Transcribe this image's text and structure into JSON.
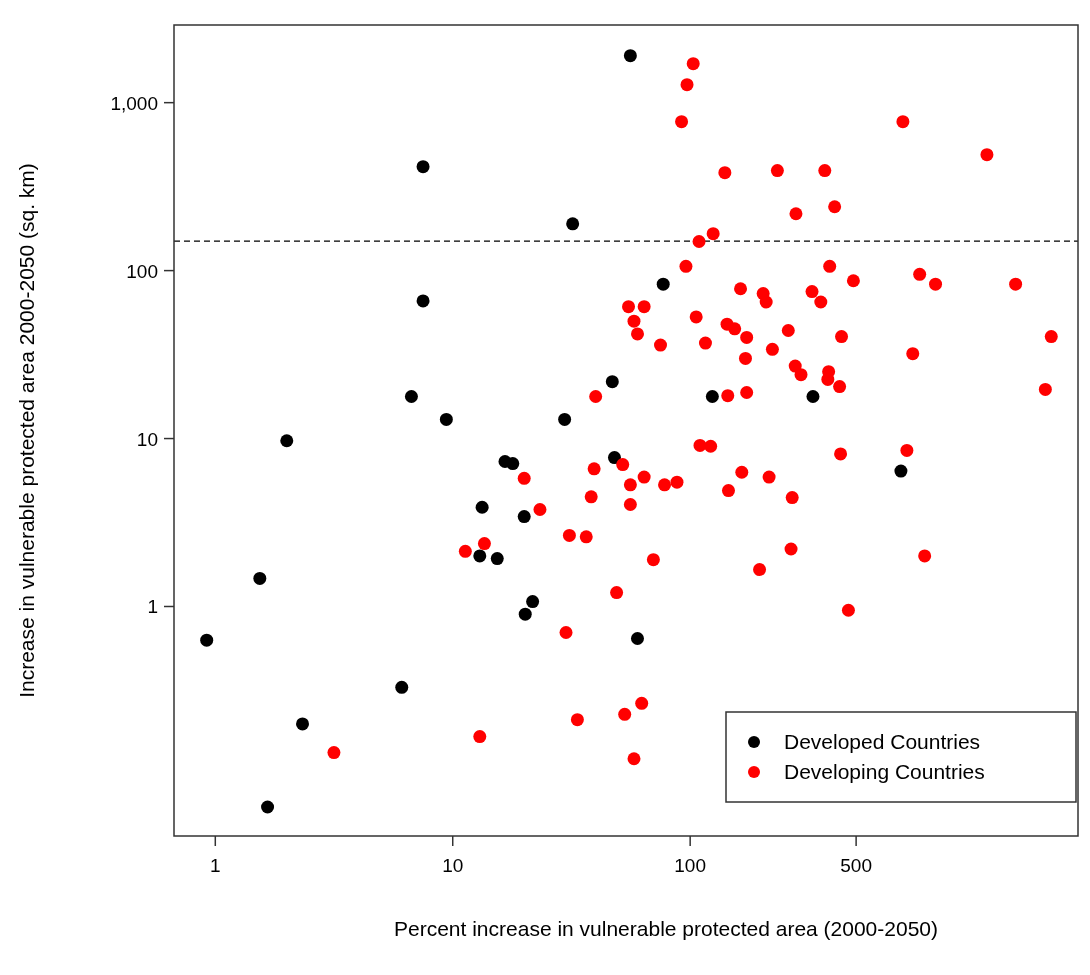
{
  "chart_data": {
    "type": "scatter",
    "xlabel": "Percent increase in vulnerable protected area (2000-2050)",
    "ylabel": "Increase in vulnerable protected area 2000-2050 (sq. km)",
    "log": "xy",
    "xlim": [
      0.67,
      4300
    ],
    "ylim": [
      0.043,
      2900
    ],
    "xticks": [
      1,
      10,
      100,
      500
    ],
    "yticks": [
      1,
      10,
      100,
      {
        "value": 1000,
        "label": "1,000"
      }
    ],
    "grid": false,
    "legend": "bottom right",
    "marker": "circle",
    "ref_lines": [
      {
        "axis": "y",
        "value": 150,
        "line_style": "dashed",
        "color": "#000000"
      }
    ],
    "series": [
      {
        "name": "Developed Countries",
        "color": "#000000",
        "x": [
          6.7,
          7.5,
          7.5,
          9.4,
          2.0,
          1.54,
          0.92,
          6.1,
          2.33,
          1.66,
          13.3,
          13.0,
          15.4,
          16.6,
          17.9,
          20,
          21.7,
          20.2,
          29.6,
          32,
          47,
          48,
          56,
          77,
          124,
          329,
          60,
          772
        ],
        "values": [
          17.8,
          416,
          66,
          13,
          9.7,
          1.47,
          0.63,
          0.33,
          0.2,
          0.064,
          3.9,
          2.0,
          1.93,
          7.3,
          7.1,
          3.43,
          1.07,
          0.9,
          13,
          190,
          21.8,
          7.7,
          1905,
          83,
          17.8,
          17.8,
          0.645,
          6.4
        ]
      },
      {
        "name": "Developing Countries",
        "color": "#ff0000",
        "x": [
          40,
          103,
          97,
          92,
          787,
          1778,
          140,
          233,
          369,
          279,
          406,
          125,
          109,
          96,
          387,
          487,
          926,
          1080,
          2348,
          163,
          203,
          209,
          326,
          355,
          55,
          64,
          58,
          60,
          75,
          106,
          116,
          143,
          154,
          173,
          171,
          222,
          259,
          434,
          866,
          3318,
          277,
          293,
          383,
          380,
          426,
          3133,
          144,
          173,
          52,
          56,
          64,
          56,
          78,
          88,
          110,
          122,
          165,
          145,
          215,
          269,
          266,
          196,
          70,
          430,
          818,
          972,
          464,
          49,
          62.5,
          53,
          58,
          20,
          23.3,
          39.4,
          38.3,
          31,
          36.5,
          13.6,
          11.3,
          30,
          33.5,
          13,
          3.16
        ],
        "values": [
          17.8,
          1707,
          1280,
          771,
          771,
          490,
          383,
          394,
          394,
          218,
          240,
          166,
          149,
          106,
          106,
          87,
          95,
          83,
          83,
          78,
          73,
          65,
          75,
          65,
          61,
          61,
          50,
          42,
          36,
          53,
          37,
          48,
          45,
          40,
          30,
          34,
          44,
          40.5,
          32,
          40.5,
          27,
          24,
          25,
          22.5,
          20.4,
          19.6,
          18,
          18.8,
          7.0,
          5.3,
          5.9,
          4.05,
          5.3,
          5.5,
          9.1,
          9.0,
          6.3,
          4.9,
          5.9,
          4.45,
          2.2,
          1.66,
          1.9,
          8.1,
          8.5,
          2.0,
          0.95,
          1.21,
          0.265,
          0.228,
          0.124,
          5.8,
          3.78,
          6.6,
          4.5,
          2.65,
          2.6,
          2.37,
          2.13,
          0.7,
          0.212,
          0.168,
          0.135
        ]
      }
    ]
  }
}
